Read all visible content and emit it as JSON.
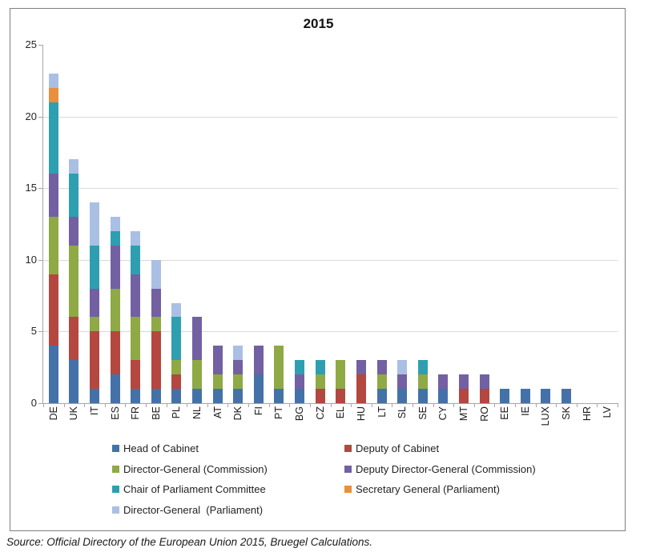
{
  "title": "2015",
  "source": "Source: Official Directory of the European Union 2015, Bruegel Calculations.",
  "chart_data": {
    "type": "bar",
    "stacked": true,
    "title": "2015",
    "xlabel": "",
    "ylabel": "",
    "ylim": [
      0,
      25
    ],
    "yticks": [
      0,
      5,
      10,
      15,
      20,
      25
    ],
    "grid": true,
    "legend_position": "bottom",
    "categories": [
      "DE",
      "UK",
      "IT",
      "ES",
      "FR",
      "BE",
      "PL",
      "NL",
      "AT",
      "DK",
      "FI",
      "PT",
      "BG",
      "CZ",
      "EL",
      "HU",
      "LT",
      "SL",
      "SE",
      "CY",
      "MT",
      "RO",
      "EE",
      "IE",
      "LUX",
      "SK",
      "HR",
      "LV"
    ],
    "series": [
      {
        "name": "Head of Cabinet",
        "color": "#4472A8",
        "values": [
          4,
          3,
          1,
          2,
          1,
          1,
          1,
          1,
          1,
          1,
          2,
          1,
          1,
          0,
          0,
          0,
          1,
          1,
          1,
          1,
          0,
          0,
          1,
          1,
          1,
          1,
          0,
          0
        ]
      },
      {
        "name": "Deputy of Cabinet",
        "color": "#B4473F",
        "values": [
          5,
          3,
          4,
          3,
          2,
          4,
          1,
          0,
          0,
          0,
          0,
          0,
          0,
          1,
          1,
          2,
          0,
          0,
          0,
          0,
          1,
          1,
          0,
          0,
          0,
          0,
          0,
          0
        ]
      },
      {
        "name": "Director-General (Commission)",
        "color": "#8FA944",
        "values": [
          4,
          5,
          1,
          3,
          3,
          1,
          1,
          2,
          1,
          1,
          0,
          3,
          0,
          1,
          2,
          0,
          1,
          0,
          1,
          0,
          0,
          0,
          0,
          0,
          0,
          0,
          0,
          0
        ]
      },
      {
        "name": "Deputy Director-General (Commission)",
        "color": "#7260A2",
        "values": [
          3,
          2,
          2,
          3,
          3,
          2,
          0,
          3,
          2,
          1,
          2,
          0,
          1,
          0,
          0,
          1,
          1,
          1,
          0,
          1,
          1,
          1,
          0,
          0,
          0,
          0,
          0,
          0
        ]
      },
      {
        "name": "Chair of Parliament Committee",
        "color": "#2E9FB0",
        "values": [
          5,
          3,
          3,
          1,
          2,
          0,
          3,
          0,
          0,
          0,
          0,
          0,
          1,
          1,
          0,
          0,
          0,
          0,
          1,
          0,
          0,
          0,
          0,
          0,
          0,
          0,
          0,
          0
        ]
      },
      {
        "name": "Secretary General (Parliament)",
        "color": "#E98F3D",
        "values": [
          1,
          0,
          0,
          0,
          0,
          0,
          0,
          0,
          0,
          0,
          0,
          0,
          0,
          0,
          0,
          0,
          0,
          0,
          0,
          0,
          0,
          0,
          0,
          0,
          0,
          0,
          0,
          0
        ]
      },
      {
        "name": "Director-General  (Parliament)",
        "color": "#AABFE4",
        "values": [
          1,
          1,
          3,
          1,
          1,
          2,
          1,
          0,
          0,
          1,
          0,
          0,
          0,
          0,
          0,
          0,
          0,
          1,
          0,
          0,
          0,
          0,
          0,
          0,
          0,
          0,
          0,
          0
        ]
      }
    ]
  }
}
